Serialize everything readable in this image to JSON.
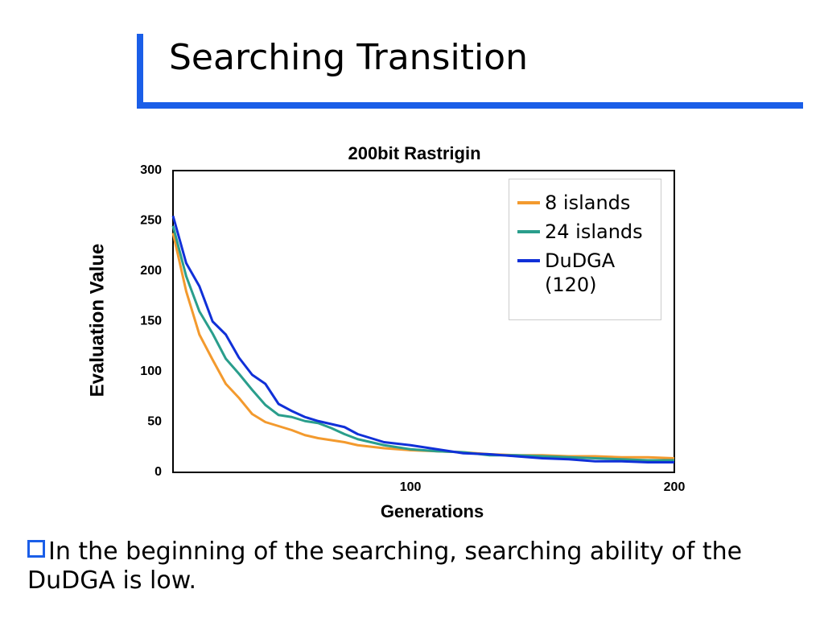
{
  "slide": {
    "title": "Searching Transition",
    "bullet": "In the beginning of the searching, searching ability of the DuDGA is low."
  },
  "chart_data": {
    "type": "line",
    "title": "200bit Rastrigin",
    "x_label": "Generations",
    "y_label": "Evaluation  Value",
    "x": [
      10,
      15,
      20,
      25,
      30,
      35,
      40,
      45,
      50,
      55,
      60,
      65,
      70,
      75,
      80,
      90,
      100,
      110,
      120,
      130,
      140,
      150,
      160,
      170,
      180,
      190,
      200
    ],
    "series": [
      {
        "name": "8 islands",
        "color": "#f39a2e",
        "values": [
          238,
          180,
          137,
          112,
          88,
          74,
          58,
          50,
          46,
          42,
          37,
          34,
          32,
          30,
          27,
          24,
          22,
          21,
          20,
          18,
          17,
          17,
          16,
          16,
          15,
          15,
          14
        ]
      },
      {
        "name": "24 islands",
        "color": "#2a9e8c",
        "values": [
          245,
          195,
          160,
          138,
          113,
          98,
          82,
          67,
          57,
          55,
          51,
          49,
          44,
          38,
          33,
          27,
          23,
          21,
          20,
          17,
          17,
          16,
          15,
          14,
          13,
          12,
          12
        ]
      },
      {
        "name": "DuDGA\n(120)",
        "color": "#1030d8",
        "values": [
          255,
          208,
          185,
          150,
          137,
          114,
          97,
          88,
          68,
          61,
          55,
          51,
          48,
          45,
          38,
          30,
          27,
          23,
          19,
          18,
          16,
          14,
          13,
          11,
          11,
          10,
          10
        ]
      }
    ],
    "xlim": [
      10,
      200
    ],
    "xticks": [
      100,
      200
    ],
    "ylim": [
      0,
      300
    ],
    "yticks": [
      0,
      50,
      100,
      150,
      200,
      250,
      300
    ],
    "grid": false,
    "legend": "top-right"
  }
}
